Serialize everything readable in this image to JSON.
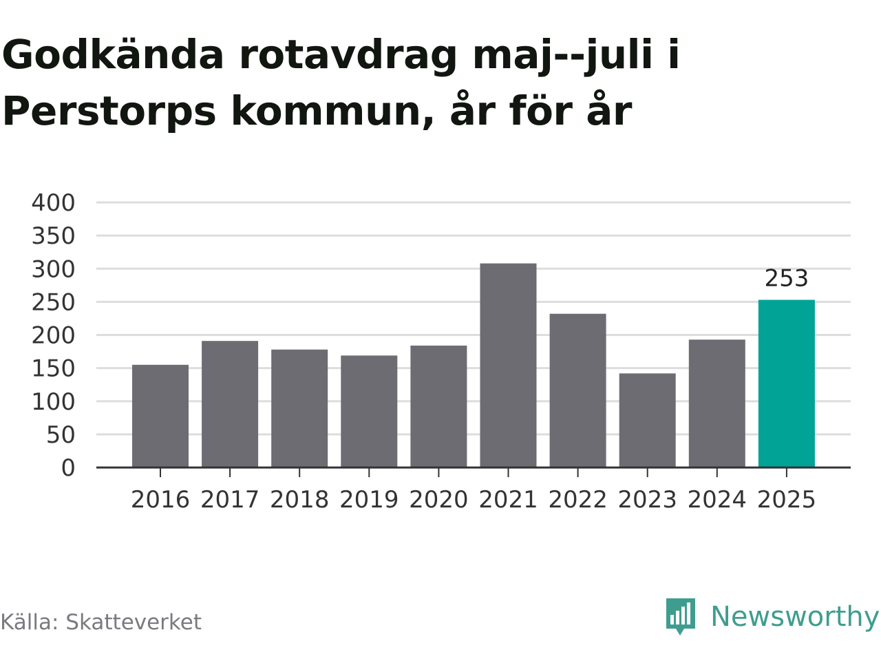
{
  "title": "Godkända rotavdrag maj--juli i Perstorps kommun, år för år",
  "source": "Källa: Skatteverket",
  "logo_text": "Newsworthy",
  "chart_data": {
    "type": "bar",
    "categories": [
      "2016",
      "2017",
      "2018",
      "2019",
      "2020",
      "2021",
      "2022",
      "2023",
      "2024",
      "2025"
    ],
    "values": [
      155,
      191,
      178,
      169,
      184,
      308,
      232,
      142,
      193,
      253
    ],
    "ylim": [
      0,
      400
    ],
    "yticks": [
      0,
      50,
      100,
      150,
      200,
      250,
      300,
      350,
      400
    ],
    "highlight_index": 9,
    "highlight_label": "253",
    "colors": {
      "bar": "#6d6c72",
      "highlight": "#00a396",
      "grid": "#dddddd",
      "axis": "#333333"
    },
    "grid": true
  }
}
